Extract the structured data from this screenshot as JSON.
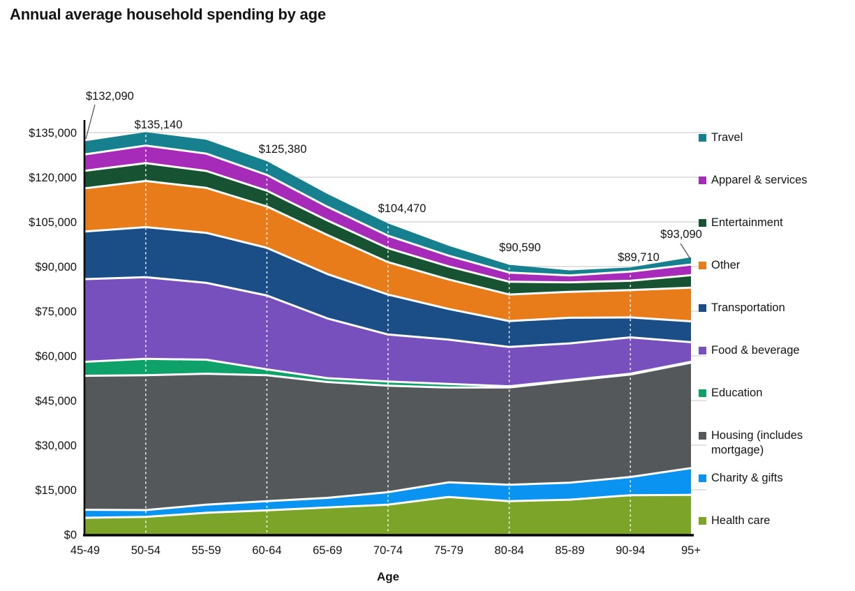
{
  "title": "Annual average household spending by age",
  "chart_data": {
    "type": "area",
    "stacked": true,
    "title": "Annual average household spending by age",
    "xlabel": "Age",
    "ylabel": "",
    "ylim": [
      0,
      135000
    ],
    "grid": "horizontal",
    "legend_position": "right",
    "categories": [
      "45-49",
      "50-54",
      "55-59",
      "60-64",
      "65-69",
      "70-74",
      "75-79",
      "80-84",
      "85-89",
      "90-94",
      "95+"
    ],
    "y_ticks": [
      "$0",
      "$15,000",
      "$30,000",
      "$45,000",
      "$60,000",
      "$75,000",
      "$90,000",
      "$105,000",
      "$120,000",
      "$135,000"
    ],
    "series": [
      {
        "name": "Health care",
        "color": "#7BA428",
        "values": [
          5600,
          5900,
          7300,
          8100,
          9100,
          10000,
          12600,
          11200,
          11700,
          13200,
          13300
        ]
      },
      {
        "name": "Charity & gifts",
        "color": "#0A93F0",
        "values": [
          2700,
          2300,
          2700,
          3100,
          3200,
          4200,
          4900,
          5500,
          5700,
          6110,
          9000
        ]
      },
      {
        "name": "Housing (includes mortgage)",
        "color": "#55585A",
        "values": [
          45000,
          45300,
          44000,
          42280,
          38900,
          35800,
          31850,
          32690,
          34200,
          34400,
          35400
        ]
      },
      {
        "name": "Education",
        "color": "#0EA169",
        "values": [
          4700,
          5500,
          4700,
          2000,
          1300,
          1400,
          1200,
          400,
          300,
          300,
          300
        ]
      },
      {
        "name": "Food & beverage",
        "color": "#7850BE",
        "values": [
          27790,
          27440,
          25820,
          24800,
          20070,
          15770,
          14900,
          13200,
          12300,
          12200,
          6590
        ]
      },
      {
        "name": "Transportation",
        "color": "#1B4E87",
        "values": [
          16000,
          16800,
          16800,
          16000,
          14900,
          13400,
          10300,
          8700,
          8600,
          6700,
          7000
        ]
      },
      {
        "name": "Other",
        "color": "#E87C1A",
        "values": [
          14500,
          15500,
          15100,
          13900,
          13100,
          10900,
          9900,
          8900,
          8700,
          9200,
          11300
        ]
      },
      {
        "name": "Entertainment",
        "color": "#175233",
        "values": [
          5900,
          6000,
          5700,
          5300,
          4900,
          4700,
          4400,
          4300,
          3200,
          3100,
          4200
        ]
      },
      {
        "name": "Apparel & services",
        "color": "#A52BB8",
        "values": [
          5500,
          5900,
          5800,
          5300,
          4600,
          4200,
          3600,
          3100,
          2300,
          3100,
          3600
        ]
      },
      {
        "name": "Travel",
        "color": "#17808F",
        "values": [
          4400,
          4500,
          4700,
          4600,
          4300,
          4100,
          3300,
          2600,
          1700,
          1400,
          2400
        ]
      }
    ],
    "totals": [
      132090,
      135140,
      132620,
      125380,
      114370,
      104470,
      96950,
      90590,
      88700,
      89710,
      93090
    ],
    "annotations": [
      {
        "category": "45-49",
        "label": "$132,090",
        "leader": true
      },
      {
        "category": "50-54",
        "label": "$135,140",
        "leader": false
      },
      {
        "category": "60-64",
        "label": "$125,380",
        "leader": false
      },
      {
        "category": "70-74",
        "label": "$104,470",
        "leader": false
      },
      {
        "category": "80-84",
        "label": "$90,590",
        "leader": false
      },
      {
        "category": "90-94",
        "label": "$89,710",
        "leader": false
      },
      {
        "category": "95+",
        "label": "$93,090",
        "leader": true
      }
    ],
    "colors": {
      "gridline": "#D9D9D9",
      "axis": "#000000",
      "text": "#131313",
      "band_separator": "#FFFFFF",
      "dashed_guides": "#FFFFFF"
    }
  }
}
